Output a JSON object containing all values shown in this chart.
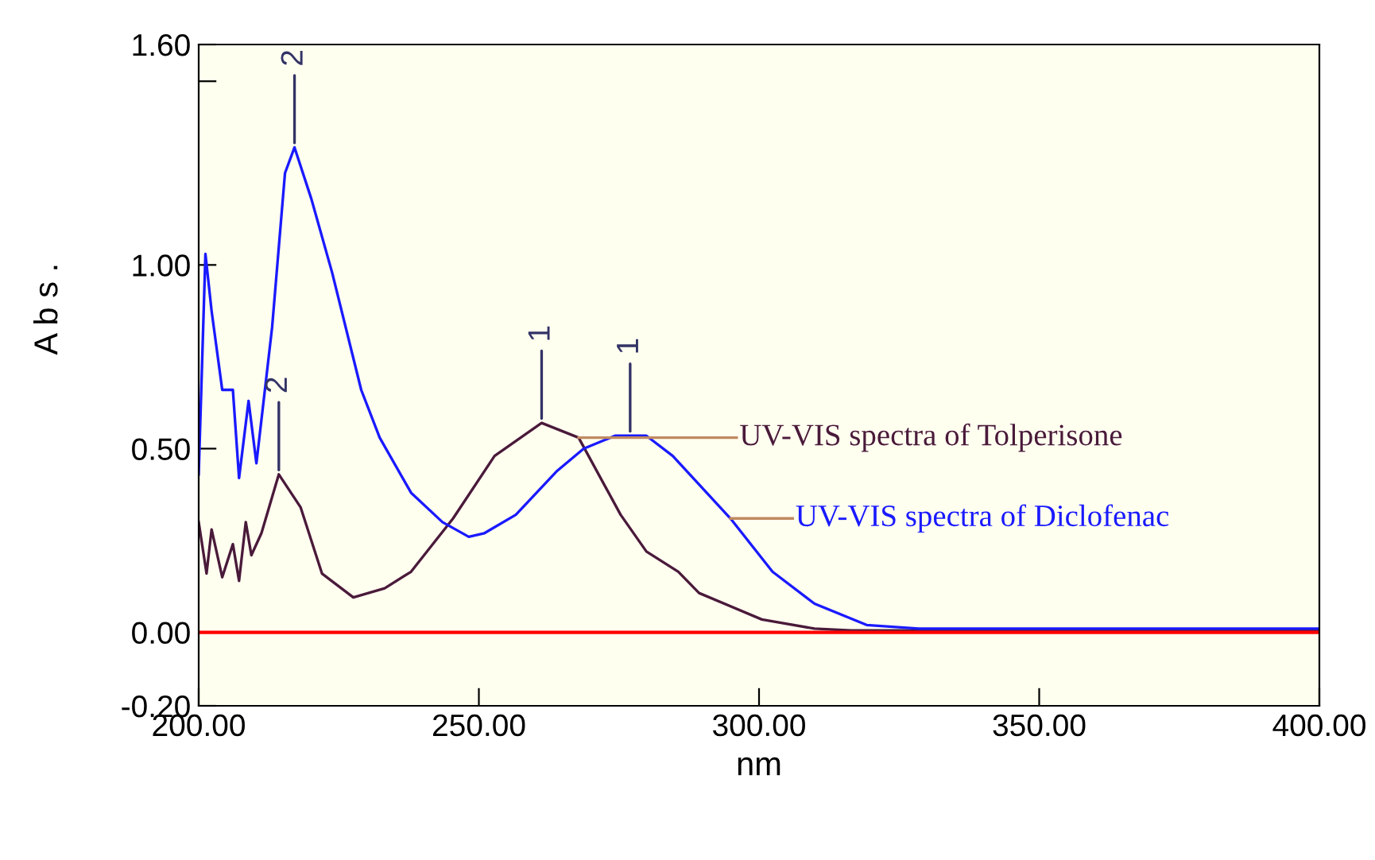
{
  "chart_data": {
    "type": "line",
    "xlabel": "nm",
    "ylabel": "A b s .",
    "xlim": [
      200,
      400
    ],
    "xticks": [
      {
        "value": 200,
        "label": "200.00"
      },
      {
        "value": 250,
        "label": "250.00"
      },
      {
        "value": 300,
        "label": "300.00"
      },
      {
        "value": 350,
        "label": "350.00"
      },
      {
        "value": 400,
        "label": "400.00"
      }
    ],
    "ylim": [
      -0.2,
      1.6
    ],
    "yticks": [
      {
        "value": -0.2,
        "label": "-0.20"
      },
      {
        "value": 0,
        "label": "0.00"
      },
      {
        "value": 0.5,
        "label": "0.50"
      },
      {
        "value": 1.0,
        "label": "1.00"
      },
      {
        "value": 1.5,
        "label": null
      },
      {
        "value": 1.6,
        "label": "1.60"
      }
    ],
    "grid": false,
    "marker": "none",
    "line_style": "solid",
    "series": [
      {
        "name": "UV-VIS spectra of Tolperisone",
        "color": "#4a1a3a",
        "x": [
          200,
          201.4,
          202.3,
          204.2,
          206.1,
          207.2,
          208.4,
          209.4,
          211.2,
          214.3,
          218.2,
          222,
          227.6,
          233.2,
          237.9,
          245.4,
          252.8,
          261.2,
          267.8,
          275.3,
          279.9,
          285.6,
          289.3,
          300.5,
          309.9,
          316.4,
          350,
          400
        ],
        "values": [
          0.3,
          0.16,
          0.28,
          0.15,
          0.24,
          0.14,
          0.3,
          0.21,
          0.27,
          0.43,
          0.34,
          0.16,
          0.095,
          0.12,
          0.165,
          0.31,
          0.48,
          0.57,
          0.53,
          0.32,
          0.22,
          0.165,
          0.107,
          0.035,
          0.01,
          0.005,
          0.005,
          0.005
        ]
      },
      {
        "name": "UV-VIS spectra of Diclofenac",
        "color": "#1a1aff",
        "x": [
          200,
          201.2,
          202.3,
          204.2,
          206.1,
          207.2,
          208.9,
          210.3,
          213.1,
          215.4,
          217.1,
          220.1,
          223.8,
          229,
          232.3,
          237.9,
          243.5,
          248.2,
          251,
          256.6,
          264,
          268.7,
          274.3,
          279.9,
          284.6,
          294.9,
          302.4,
          309.9,
          319.2,
          328.5,
          350,
          400
        ],
        "values": [
          0.43,
          1.03,
          0.875,
          0.66,
          0.66,
          0.42,
          0.63,
          0.46,
          0.83,
          1.25,
          1.32,
          1.18,
          0.98,
          0.66,
          0.53,
          0.38,
          0.3,
          0.26,
          0.27,
          0.32,
          0.44,
          0.5,
          0.535,
          0.535,
          0.48,
          0.31,
          0.165,
          0.078,
          0.02,
          0.01,
          0.01,
          0.01
        ]
      }
    ],
    "ref_lines": [
      {
        "axis": "y",
        "value": 0,
        "color": "#ff0000"
      }
    ],
    "annotations": [
      {
        "text": "2",
        "x": 214.3,
        "y": 0.43
      },
      {
        "text": "1",
        "x": 261.2,
        "y": 0.57
      },
      {
        "text": "1",
        "x": 277,
        "y": 0.535
      },
      {
        "text": "2",
        "x": 217.1,
        "y": 1.32
      }
    ]
  }
}
